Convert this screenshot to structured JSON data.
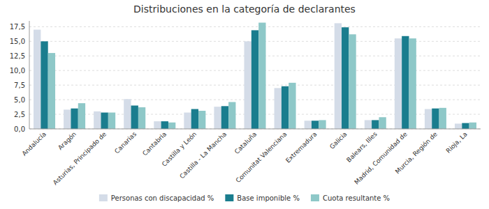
{
  "chart_data": {
    "type": "bar",
    "title": "Distribuciones en la categoría de declarantes",
    "categories": [
      "Andalucía",
      "Aragón",
      "Asturias, Principado de",
      "Canarias",
      "Cantabria",
      "Castilla y León",
      "Castilla - La Mancha",
      "Cataluña",
      "Comunitat Valenciana",
      "Extremadura",
      "Galicia",
      "Balears, Illes",
      "Madrid, Comunidad de",
      "Murcia, Región de",
      "Rioja, La"
    ],
    "series": [
      {
        "name": "Personas con discapacidad %",
        "color": "#d4dce8",
        "values": [
          17.0,
          3.3,
          3.0,
          5.1,
          1.3,
          2.8,
          3.8,
          15.0,
          7.0,
          1.4,
          18.1,
          1.5,
          15.5,
          3.4,
          0.9
        ]
      },
      {
        "name": "Base imponible %",
        "color": "#1a7d8e",
        "values": [
          15.0,
          3.5,
          2.8,
          4.0,
          1.3,
          3.4,
          3.9,
          16.9,
          7.3,
          1.4,
          17.4,
          1.5,
          15.9,
          3.5,
          1.0
        ]
      },
      {
        "name": "Cuota resultante %",
        "color": "#8ec8c8",
        "values": [
          13.0,
          4.4,
          2.8,
          3.7,
          1.1,
          3.1,
          4.6,
          18.2,
          7.9,
          1.5,
          16.2,
          2.0,
          15.5,
          3.6,
          1.1
        ]
      }
    ],
    "ylim": [
      0,
      18.5
    ],
    "yticks": [
      {
        "value": 0.0,
        "label": "0,0"
      },
      {
        "value": 2.5,
        "label": "2,5"
      },
      {
        "value": 5.0,
        "label": "5,0"
      },
      {
        "value": 7.5,
        "label": "7,5"
      },
      {
        "value": 10.0,
        "label": "10,0"
      },
      {
        "value": 12.5,
        "label": "12,5"
      },
      {
        "value": 15.0,
        "label": "15,0"
      },
      {
        "value": 17.5,
        "label": "17,5"
      }
    ],
    "grid": true,
    "legend": "bottom"
  }
}
